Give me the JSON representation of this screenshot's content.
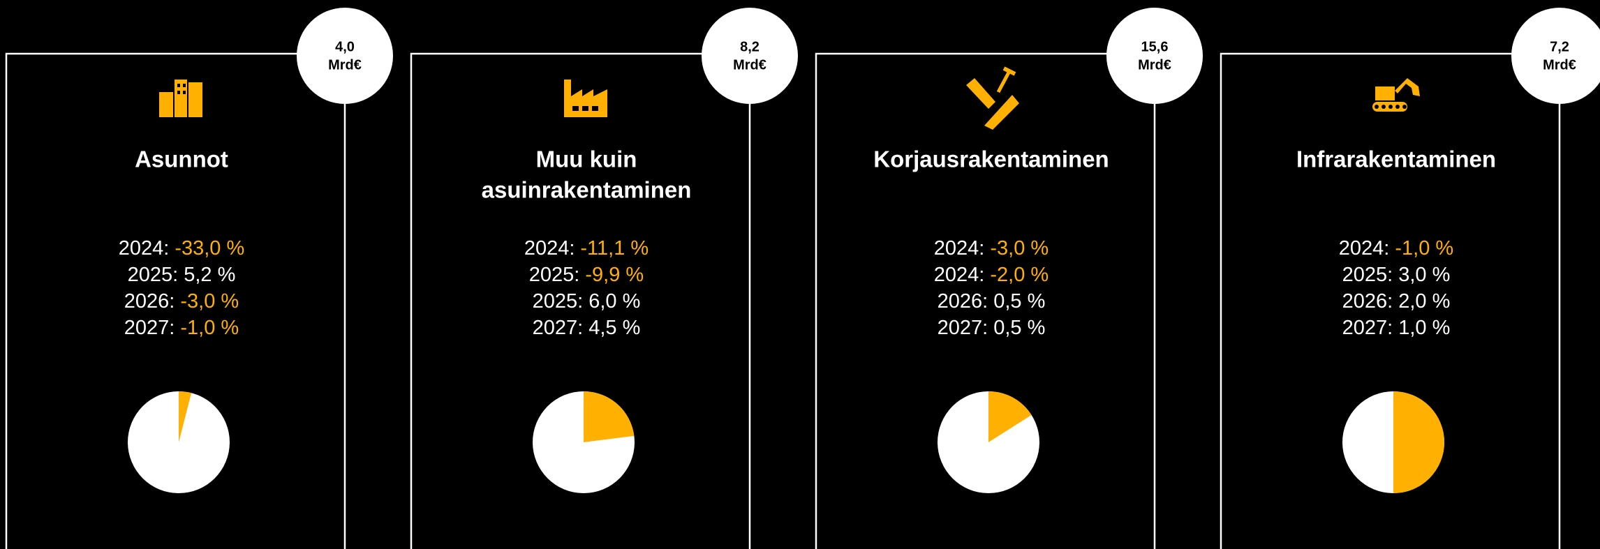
{
  "panels": [
    {
      "badge": [
        "4,0",
        "Mrd€"
      ],
      "title": [
        "Asunnot"
      ],
      "stats": [
        {
          "year": "2024:",
          "value": "-33,0 %",
          "color": "#ffb000"
        },
        {
          "year": "2025:",
          "value": "5,2 %",
          "color": "#ffffff"
        },
        {
          "year": "2026:",
          "value": "-3,0 %",
          "color": "#ffb000"
        },
        {
          "year": "2027:",
          "value": "-1,0 %",
          "color": "#ffb000"
        }
      ],
      "pie_share": 4
    },
    {
      "badge": [
        "8,2",
        "Mrd€"
      ],
      "title": [
        "Muu kuin",
        "asuinrakentaminen"
      ],
      "stats": [
        {
          "year": "2024:",
          "value": "-11,1 %",
          "color": "#ffb000"
        },
        {
          "year": "2025:",
          "value": "-9,9 %",
          "color": "#ffb000"
        },
        {
          "year": "2025:",
          "value": "6,0 %",
          "color": "#ffffff"
        },
        {
          "year": "2027:",
          "value": "4,5 %",
          "color": "#ffffff"
        }
      ],
      "pie_share": 23
    },
    {
      "badge": [
        "15,6",
        "Mrd€"
      ],
      "title": [
        "Korjausrakentaminen"
      ],
      "stats": [
        {
          "year": "2024:",
          "value": "-3,0 %",
          "color": "#ffb000"
        },
        {
          "year": "2024:",
          "value": "-2,0 %",
          "color": "#ffb000"
        },
        {
          "year": "2026:",
          "value": "0,5 %",
          "color": "#ffffff"
        },
        {
          "year": "2027:",
          "value": "0,5 %",
          "color": "#ffffff"
        }
      ],
      "pie_share": 16
    },
    {
      "badge": [
        "7,2",
        "Mrd€"
      ],
      "title": [
        "Infrarakentaminen"
      ],
      "stats": [
        {
          "year": "2024:",
          "value": "-1,0 %",
          "color": "#ffb000"
        },
        {
          "year": "2025:",
          "value": "3,0 %",
          "color": "#ffffff"
        },
        {
          "year": "2026:",
          "value": "2,0 %",
          "color": "#ffffff"
        },
        {
          "year": "2027:",
          "value": "1,0 %",
          "color": "#ffffff"
        }
      ],
      "pie_share": 50
    }
  ],
  "pie_color": "#ffb000"
}
